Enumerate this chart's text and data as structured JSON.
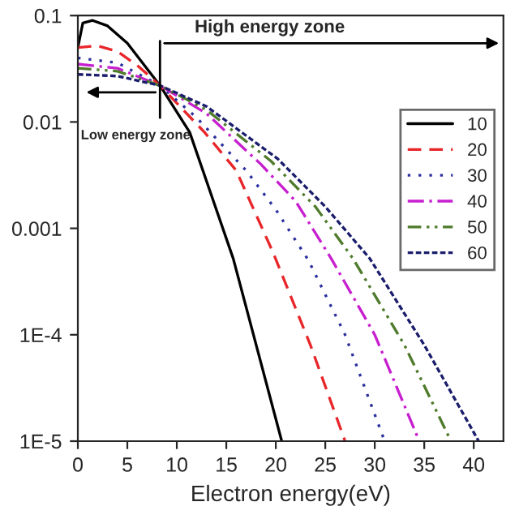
{
  "chart_data": {
    "type": "line",
    "xlabel": "Electron energy(eV)",
    "xlim": [
      0,
      43
    ],
    "xticks": [
      0,
      5,
      10,
      15,
      20,
      25,
      30,
      35,
      40
    ],
    "ylim": [
      1e-05,
      0.1
    ],
    "yticks": [
      {
        "value": 0.1,
        "label": "0.1"
      },
      {
        "value": 0.01,
        "label": "0.01"
      },
      {
        "value": 0.001,
        "label": "0.001"
      },
      {
        "value": 0.0001,
        "label": "1E-4"
      },
      {
        "value": 1e-05,
        "label": "1E-5"
      }
    ],
    "log": "y",
    "grid": false,
    "legend": "right",
    "series": [
      {
        "name": "10",
        "color": "#000000",
        "line_style": "solid",
        "x": [
          0,
          0.5,
          1.5,
          3,
          5,
          8.3,
          11.3,
          15.7,
          20.6
        ],
        "values": [
          0.05,
          0.085,
          0.09,
          0.08,
          0.055,
          0.022,
          0.008,
          0.00052,
          1e-05
        ]
      },
      {
        "name": "20",
        "color": "#e8262a",
        "line_style": "dashed",
        "x": [
          0,
          2,
          4,
          6,
          8.3,
          12.8,
          16,
          19.7,
          23.5,
          27
        ],
        "values": [
          0.05,
          0.052,
          0.046,
          0.034,
          0.022,
          0.008,
          0.0035,
          0.0006,
          8e-05,
          1e-05
        ]
      },
      {
        "name": "30",
        "color": "#2b2f9e",
        "line_style": "dotted",
        "x": [
          0,
          4,
          8.3,
          12,
          17,
          20,
          23.3,
          27,
          31
        ],
        "values": [
          0.04,
          0.036,
          0.022,
          0.011,
          0.0035,
          0.0015,
          0.0005,
          0.0001,
          1e-05
        ]
      },
      {
        "name": "40",
        "color": "#c71fcf",
        "line_style": "dashdot",
        "x": [
          0,
          4,
          8.3,
          13,
          18.5,
          22,
          25.6,
          30,
          34.5
        ],
        "values": [
          0.035,
          0.032,
          0.022,
          0.012,
          0.004,
          0.0018,
          0.00052,
          0.0001,
          1e-05
        ]
      },
      {
        "name": "50",
        "color": "#4f7b2c",
        "line_style": "dashdotdot",
        "x": [
          0,
          4,
          8.3,
          13,
          19.5,
          24,
          27.8,
          33,
          37.7
        ],
        "values": [
          0.032,
          0.03,
          0.022,
          0.013,
          0.0043,
          0.0016,
          0.00052,
          8e-05,
          1e-05
        ]
      },
      {
        "name": "60",
        "color": "#1a1d6b",
        "line_style": "shortdash",
        "x": [
          0,
          4,
          8.3,
          13,
          20.2,
          25,
          29.5,
          35,
          40.5
        ],
        "values": [
          0.028,
          0.027,
          0.022,
          0.014,
          0.0045,
          0.0016,
          0.00052,
          8e-05,
          1e-05
        ]
      }
    ],
    "ref_lines": [
      {
        "axis": "x",
        "value": 8.3,
        "color": "#000000"
      }
    ],
    "annotations": [
      "High energy zone",
      "Low energy zone"
    ]
  }
}
